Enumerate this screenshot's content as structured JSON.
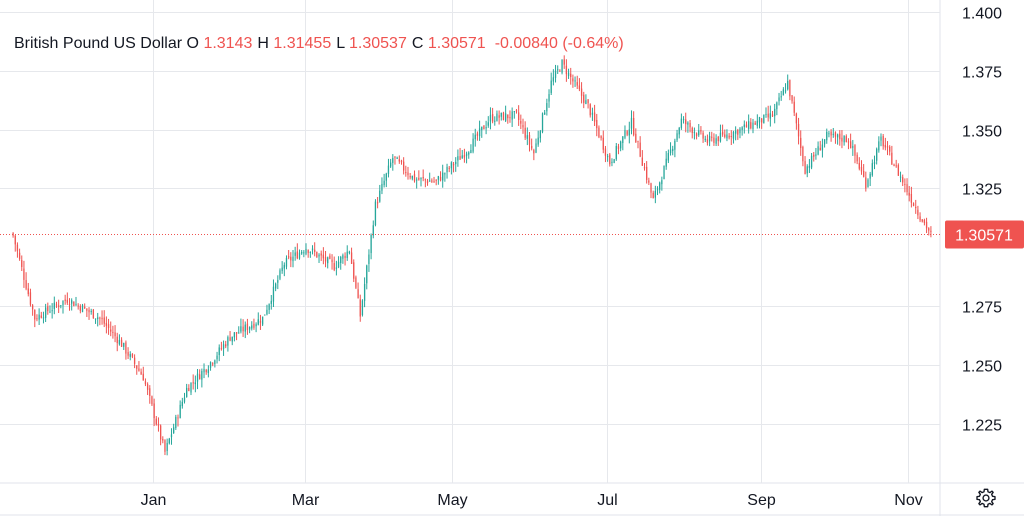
{
  "legend": {
    "symbol": "British Pound US Dollar",
    "o_label": "O",
    "o_value": "1.3143",
    "h_label": "H",
    "h_value": "1.31455",
    "l_label": "L",
    "l_value": "1.30537",
    "c_label": "C",
    "c_value": "1.30571",
    "change": "-0.00840 (-0.64%)"
  },
  "last_price_label": "1.30571",
  "colors": {
    "up": "#26a69a",
    "down": "#ef5350",
    "grid": "#e6e8ec",
    "text": "#131722"
  },
  "settings_icon": "gear-icon",
  "chart_data": {
    "type": "candlestick",
    "title": "British Pound US Dollar",
    "x_ticks": [
      "Jan",
      "Mar",
      "May",
      "Jul",
      "Sep",
      "Nov"
    ],
    "y_ticks": [
      "1.400",
      "1.375",
      "1.350",
      "1.325",
      "1.275",
      "1.250",
      "1.225"
    ],
    "ylim": [
      1.2,
      1.405
    ],
    "last_price": 1.30571,
    "grid": true,
    "close_path": [
      [
        0,
        1.305
      ],
      [
        10,
        1.27
      ],
      [
        25,
        1.278
      ],
      [
        40,
        1.27
      ],
      [
        50,
        1.259
      ],
      [
        60,
        1.245
      ],
      [
        70,
        1.213
      ],
      [
        80,
        1.24
      ],
      [
        90,
        1.25
      ],
      [
        100,
        1.262
      ],
      [
        115,
        1.27
      ],
      [
        125,
        1.293
      ],
      [
        135,
        1.3
      ],
      [
        148,
        1.292
      ],
      [
        155,
        1.299
      ],
      [
        160,
        1.271
      ],
      [
        167,
        1.318
      ],
      [
        175,
        1.338
      ],
      [
        185,
        1.329
      ],
      [
        195,
        1.328
      ],
      [
        210,
        1.342
      ],
      [
        220,
        1.355
      ],
      [
        232,
        1.356
      ],
      [
        240,
        1.34
      ],
      [
        248,
        1.37
      ],
      [
        253,
        1.378
      ],
      [
        265,
        1.36
      ],
      [
        275,
        1.336
      ],
      [
        285,
        1.353
      ],
      [
        295,
        1.32
      ],
      [
        308,
        1.354
      ],
      [
        320,
        1.345
      ],
      [
        330,
        1.348
      ],
      [
        340,
        1.352
      ],
      [
        350,
        1.356
      ],
      [
        357,
        1.37
      ],
      [
        365,
        1.333
      ],
      [
        375,
        1.347
      ],
      [
        385,
        1.346
      ],
      [
        393,
        1.327
      ],
      [
        400,
        1.346
      ],
      [
        410,
        1.328
      ],
      [
        417,
        1.315
      ],
      [
        423,
        1.3057
      ]
    ]
  }
}
